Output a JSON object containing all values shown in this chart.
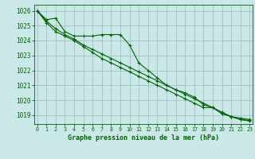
{
  "title": "Graphe pression niveau de la mer (hPa)",
  "background_color": "#cbe8e8",
  "grid_color": "#99bbbb",
  "line_color": "#006600",
  "x_ticks": [
    0,
    1,
    2,
    3,
    4,
    5,
    6,
    7,
    8,
    9,
    10,
    11,
    12,
    13,
    14,
    15,
    16,
    17,
    18,
    19,
    20,
    21,
    22,
    23
  ],
  "ylim": [
    1018.4,
    1026.4
  ],
  "yticks": [
    1019,
    1020,
    1021,
    1022,
    1023,
    1024,
    1025,
    1026
  ],
  "lines": [
    [
      1026.0,
      1025.4,
      1025.5,
      1024.6,
      1024.3,
      1024.3,
      1024.3,
      1024.4,
      1024.4,
      1024.4,
      1023.7,
      1022.5,
      1022.0,
      1021.5,
      1021.0,
      1020.7,
      1020.5,
      1020.2,
      1019.7,
      1019.5,
      1019.1,
      1018.9,
      1018.8,
      1018.7
    ],
    [
      1026.0,
      1025.3,
      1024.8,
      1024.4,
      1024.1,
      1023.7,
      1023.4,
      1023.1,
      1022.8,
      1022.5,
      1022.2,
      1021.9,
      1021.6,
      1021.3,
      1021.0,
      1020.7,
      1020.4,
      1020.1,
      1019.8,
      1019.5,
      1019.2,
      1018.9,
      1018.7,
      1018.65
    ],
    [
      1026.0,
      1025.2,
      1024.6,
      1024.3,
      1024.0,
      1023.6,
      1023.2,
      1022.8,
      1022.5,
      1022.2,
      1021.9,
      1021.6,
      1021.3,
      1021.0,
      1020.7,
      1020.4,
      1020.1,
      1019.8,
      1019.5,
      1019.5,
      1019.1,
      1018.9,
      1018.7,
      1018.6
    ]
  ],
  "xlabel_fontsize": 6.0,
  "ytick_fontsize": 5.5,
  "xtick_fontsize": 4.8
}
